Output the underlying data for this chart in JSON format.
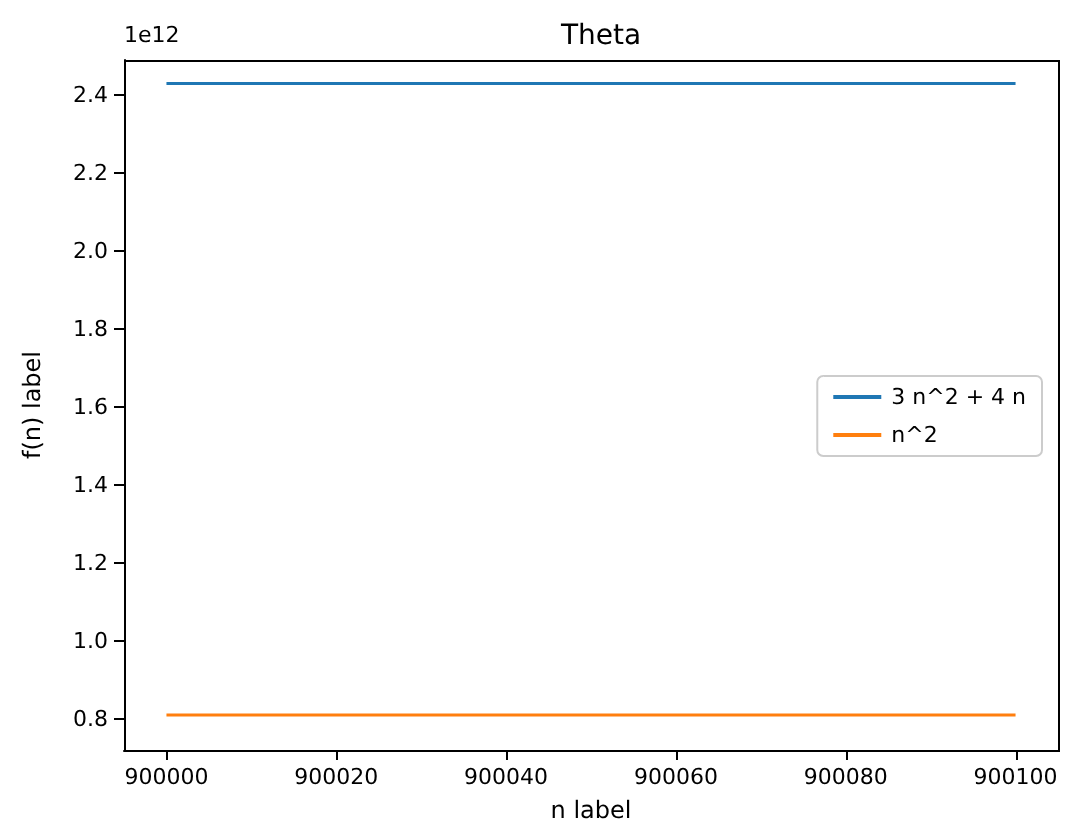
{
  "chart_data": {
    "type": "line",
    "title": "Theta",
    "xlabel": "n label",
    "ylabel": "f(n) label",
    "annotations": [
      "1e12"
    ],
    "x": [
      900000,
      900100
    ],
    "series": [
      {
        "name": "3 n^2 + 4 n",
        "color": "#1f77b4",
        "values": [
          2.43,
          2.43
        ]
      },
      {
        "name": "n^2",
        "color": "#ff7f0e",
        "values": [
          0.81,
          0.81
        ]
      }
    ],
    "xlim": [
      899995,
      900105
    ],
    "xticks": [
      900000,
      900020,
      900040,
      900060,
      900080,
      900100
    ],
    "ylim": [
      0.72,
      2.49
    ],
    "yticks": [
      0.8,
      {
        "value": 1,
        "label": "1.0"
      },
      1.2,
      1.4,
      1.6,
      1.8,
      {
        "value": 2,
        "label": "2.0"
      },
      2.2,
      2.4
    ],
    "legend": "right",
    "grid": false,
    "marker": "none",
    "line_style": "solid"
  }
}
